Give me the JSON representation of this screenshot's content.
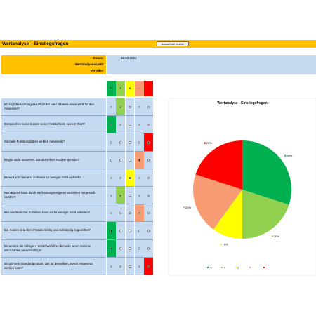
{
  "header": {
    "title": "Wertanalyse – Einstiegsfragen",
    "button": "Auswahl alle löschen"
  },
  "form": [
    {
      "label": "Datum:",
      "value": "12.03.2023"
    },
    {
      "label": "Wertanalyseobjekt:"
    },
    {
      "label": "Verteiler:"
    }
  ],
  "options": [
    {
      "label": "++",
      "color": "#00b050"
    },
    {
      "label": "+",
      "color": "#92d050"
    },
    {
      "label": "o",
      "color": "#ffff00"
    },
    {
      "label": "-",
      "color": "#f79b72"
    },
    {
      "label": "--",
      "color": "#ff0000"
    }
  ],
  "questions": [
    {
      "text": "Erzeugt die Nutzung des Produkts oder Bauteils einen Wert für den Anwender?",
      "selected": "+"
    },
    {
      "text": "Entsprechen seine Kosten seiner Nützlichkeit, seinem Wert?",
      "selected": "++"
    },
    {
      "text": "Sind alle Funktionalitäten wirklich notwendig?",
      "selected": "--"
    },
    {
      "text": "Es gibt nicht Besseres, das denselben Nutzen spendet?",
      "selected": "-"
    },
    {
      "text": "Es wird von niemand anderem für weniger Geld verkauft?",
      "selected": "o"
    },
    {
      "text": "Kein Bauteil kann durch ein kostengünstigeres Verfahren hergestellt werden?",
      "selected": "+"
    },
    {
      "text": "Kein verlässlicher Zulieferer kann es für weniger Geld anbieten?",
      "selected": "-"
    },
    {
      "text": "Die Kosten sind dem Produkt richtig und vollständig zugeordnet?",
      "selected": "++"
    },
    {
      "text": "Es werden die richtigen Herstellverfahren benutzt, wenn man die Stückzahlen berücksichtigt?",
      "selected": "++"
    },
    {
      "text": "Es gibt kein Standardprodukt, das für denselben Zweck eingesetzt werden kann?",
      "selected": "--"
    }
  ],
  "chart_data": {
    "type": "pie",
    "title": "Wertanalyse - Einstiegsfragen",
    "categories": [
      "++",
      "+",
      "o",
      "-",
      "--"
    ],
    "values": [
      30,
      20,
      10,
      20,
      20
    ],
    "value_labels": [
      "30%",
      "20%",
      "10%",
      "20%",
      "20%"
    ],
    "colors": [
      "#00b050",
      "#92d050",
      "#ffff00",
      "#f79b72",
      "#ff0000"
    ]
  }
}
